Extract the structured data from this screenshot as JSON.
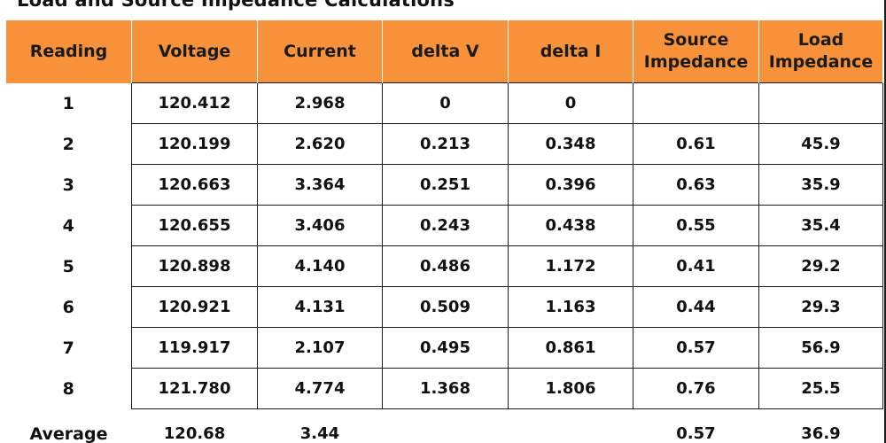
{
  "title": "Load and Source Impedance Calculations",
  "colors": {
    "header_bg": "#f7923a",
    "border": "#1a1a1a"
  },
  "headers": [
    "Reading",
    "Voltage",
    "Current",
    "delta V",
    "delta I",
    "Source Impedance",
    "Load Impedance"
  ],
  "rows": [
    [
      "1",
      "120.412",
      "2.968",
      "0",
      "0",
      "",
      ""
    ],
    [
      "2",
      "120.199",
      "2.620",
      "0.213",
      "0.348",
      "0.61",
      "45.9"
    ],
    [
      "3",
      "120.663",
      "3.364",
      "0.251",
      "0.396",
      "0.63",
      "35.9"
    ],
    [
      "4",
      "120.655",
      "3.406",
      "0.243",
      "0.438",
      "0.55",
      "35.4"
    ],
    [
      "5",
      "120.898",
      "4.140",
      "0.486",
      "1.172",
      "0.41",
      "29.2"
    ],
    [
      "6",
      "120.921",
      "4.131",
      "0.509",
      "1.163",
      "0.44",
      "29.3"
    ],
    [
      "7",
      "119.917",
      "2.107",
      "0.495",
      "0.861",
      "0.57",
      "56.9"
    ],
    [
      "8",
      "121.780",
      "4.774",
      "1.368",
      "1.806",
      "0.76",
      "25.5"
    ]
  ],
  "average": [
    "Average",
    "120.68",
    "3.44",
    "",
    "",
    "0.57",
    "36.9"
  ]
}
